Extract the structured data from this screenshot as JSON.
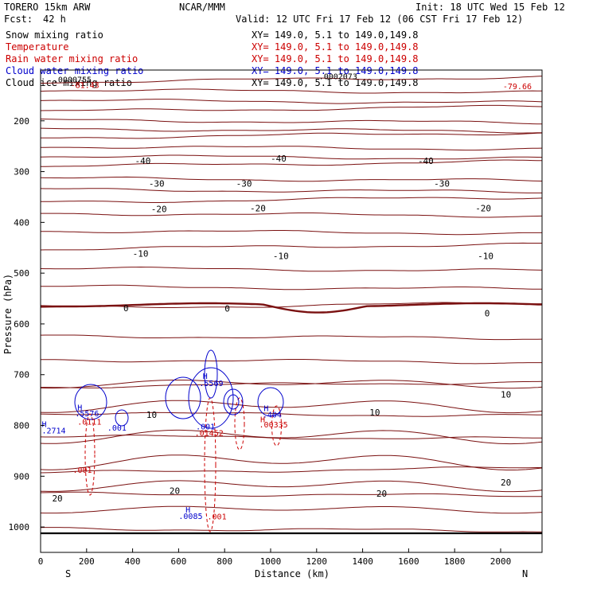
{
  "header": {
    "model": "TORERO  15km ARW",
    "center": "NCAR/MMM",
    "init": "Init: 18 UTC Wed 15 Feb 12",
    "fcst_label": "Fcst:",
    "fcst_value": "42 h",
    "valid": "Valid: 12 UTC Fri 17 Feb 12 (06 CST Fri 17 Feb 12)"
  },
  "fields": [
    {
      "name": "Snow mixing ratio",
      "xy": "XY= 149.0,  5.1 to 149.0,149.8",
      "color": "#000000"
    },
    {
      "name": "Temperature",
      "xy": "XY= 149.0,  5.1 to 149.0,149.8",
      "color": "#cc0000"
    },
    {
      "name": "Rain water mixing ratio",
      "xy": "XY= 149.0,  5.1 to 149.0,149.8",
      "color": "#cc0000"
    },
    {
      "name": "Cloud water mixing ratio",
      "xy": "XY= 149.0,  5.1 to 149.0,149.8",
      "color": "#0000cc"
    },
    {
      "name": "Cloud ice mixing ratio",
      "xy": "XY= 149.0,  5.1 to 149.0,149.8",
      "color": "#000000"
    }
  ],
  "chart_data": {
    "type": "contour",
    "title": "",
    "xlabel": "Distance (km)",
    "ylabel": "Pressure (hPa)",
    "xlim": [
      0,
      2180
    ],
    "ylim": [
      1050,
      100
    ],
    "x_ticks": [
      0,
      200,
      400,
      600,
      800,
      1000,
      1200,
      1400,
      1600,
      1800,
      2000
    ],
    "y_ticks": [
      200,
      300,
      400,
      500,
      600,
      700,
      800,
      900,
      1000
    ],
    "x_end_labels": {
      "left": "S",
      "right": "N"
    },
    "temperature_labels": [
      {
        "x": 410,
        "p": 285,
        "text": "-40"
      },
      {
        "x": 1000,
        "p": 280,
        "text": "-40"
      },
      {
        "x": 1640,
        "p": 285,
        "text": "-40"
      },
      {
        "x": 470,
        "p": 330,
        "text": "-30"
      },
      {
        "x": 850,
        "p": 330,
        "text": "-30"
      },
      {
        "x": 1710,
        "p": 330,
        "text": "-30"
      },
      {
        "x": 480,
        "p": 380,
        "text": "-20"
      },
      {
        "x": 910,
        "p": 378,
        "text": "-20"
      },
      {
        "x": 1890,
        "p": 378,
        "text": "-20"
      },
      {
        "x": 400,
        "p": 468,
        "text": "-10"
      },
      {
        "x": 1010,
        "p": 472,
        "text": "-10"
      },
      {
        "x": 1900,
        "p": 472,
        "text": "-10"
      },
      {
        "x": 360,
        "p": 575,
        "text": "0"
      },
      {
        "x": 800,
        "p": 576,
        "text": "0"
      },
      {
        "x": 1930,
        "p": 585,
        "text": "0"
      },
      {
        "x": 460,
        "p": 785,
        "text": "10"
      },
      {
        "x": 1430,
        "p": 780,
        "text": "10"
      },
      {
        "x": 2000,
        "p": 745,
        "text": "10"
      },
      {
        "x": 560,
        "p": 935,
        "text": "20"
      },
      {
        "x": 1460,
        "p": 940,
        "text": "20"
      },
      {
        "x": 2000,
        "p": 918,
        "text": "20"
      },
      {
        "x": 50,
        "p": 950,
        "text": "20"
      }
    ],
    "extrema_labels": [
      {
        "x": 130,
        "p": 135,
        "text": "-81.43",
        "color": "#cc0000"
      },
      {
        "x": 2010,
        "p": 138,
        "text": "-79.66",
        "color": "#cc0000"
      },
      {
        "x": 55,
        "p": 124,
        "text": ".0000755",
        "color": "#000000"
      },
      {
        "x": 1210,
        "p": 118,
        "text": ".0002073",
        "color": "#000000"
      },
      {
        "x": 5,
        "p": 803,
        "text": "H",
        "color": "#0000cc"
      },
      {
        "x": 5,
        "p": 816,
        "text": ".2714",
        "color": "#0000cc"
      },
      {
        "x": 160,
        "p": 770,
        "text": "H",
        "color": "#0000cc"
      },
      {
        "x": 150,
        "p": 782,
        "text": ".5576",
        "color": "#0000cc"
      },
      {
        "x": 160,
        "p": 798,
        "text": ".0111",
        "color": "#cc0000"
      },
      {
        "x": 290,
        "p": 810,
        "text": ".001",
        "color": "#0000cc"
      },
      {
        "x": 705,
        "p": 708,
        "text": "H",
        "color": "#0000cc"
      },
      {
        "x": 690,
        "p": 722,
        "text": ".5569",
        "color": "#0000cc"
      },
      {
        "x": 675,
        "p": 808,
        "text": ".001",
        "color": "#0000cc"
      },
      {
        "x": 670,
        "p": 820,
        "text": ".01452",
        "color": "#cc0000"
      },
      {
        "x": 970,
        "p": 772,
        "text": "H",
        "color": "#0000cc"
      },
      {
        "x": 965,
        "p": 784,
        "text": ".404",
        "color": "#0000cc"
      },
      {
        "x": 955,
        "p": 794,
        "text": "H",
        "color": "#cc0000"
      },
      {
        "x": 950,
        "p": 804,
        "text": ".00335",
        "color": "#cc0000"
      },
      {
        "x": 140,
        "p": 893,
        "text": ".001",
        "color": "#cc0000"
      },
      {
        "x": 630,
        "p": 972,
        "text": "H",
        "color": "#0000cc"
      },
      {
        "x": 600,
        "p": 984,
        "text": ".0085",
        "color": "#0000cc"
      },
      {
        "x": 725,
        "p": 985,
        "text": ".001",
        "color": "#cc0000"
      }
    ]
  }
}
